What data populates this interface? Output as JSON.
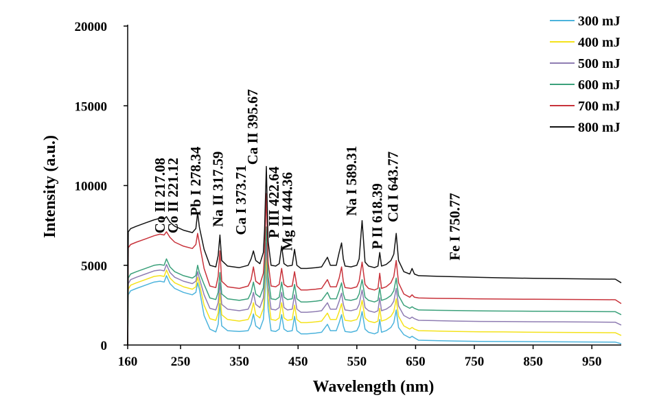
{
  "chart_data": {
    "type": "line",
    "title": "",
    "xlabel": "Wavelength (nm)",
    "ylabel": "Intensity (a.u.)",
    "xlim": [
      160,
      1000
    ],
    "ylim": [
      0,
      20000
    ],
    "x_ticks": [
      160,
      250,
      350,
      450,
      550,
      650,
      750,
      850,
      950
    ],
    "y_ticks": [
      0,
      5000,
      10000,
      15000,
      20000
    ],
    "x_tick_labels": [
      "160",
      "250",
      "350",
      "450",
      "550",
      "650",
      "750",
      "850",
      "950"
    ],
    "y_tick_labels": [
      "0",
      "5000",
      "10000",
      "15000",
      "20000"
    ],
    "grid": false,
    "legend_position": "top-right",
    "x": [
      160,
      161,
      165,
      175,
      190,
      205,
      215,
      222,
      226,
      232,
      240,
      255,
      270,
      276,
      279,
      282,
      290,
      300,
      310,
      314,
      317,
      320,
      330,
      350,
      365,
      370,
      374,
      378,
      385,
      391,
      393,
      396,
      399,
      404,
      412,
      418,
      422,
      426,
      432,
      440,
      444,
      448,
      455,
      465,
      480,
      490,
      500,
      505,
      515,
      520,
      524,
      527,
      530,
      540,
      550,
      554,
      559,
      564,
      570,
      580,
      586,
      589,
      592,
      600,
      608,
      613,
      617,
      621,
      630,
      640,
      644,
      648,
      655,
      680,
      720,
      760,
      800,
      850,
      900,
      950,
      990,
      1000
    ],
    "series": [
      {
        "name": "300 mJ",
        "color": "#4bb3dc",
        "values": [
          0,
          3150,
          3400,
          3550,
          3750,
          3950,
          4000,
          3950,
          4350,
          3850,
          3550,
          3300,
          3150,
          3300,
          3900,
          3500,
          1850,
          1000,
          820,
          1300,
          2600,
          1200,
          900,
          850,
          900,
          1300,
          1950,
          1200,
          1000,
          1600,
          2700,
          4900,
          2300,
          900,
          850,
          1000,
          1900,
          1000,
          850,
          900,
          1800,
          900,
          700,
          700,
          750,
          800,
          1300,
          900,
          900,
          1400,
          1900,
          1200,
          850,
          800,
          900,
          1200,
          2100,
          1000,
          800,
          700,
          800,
          1600,
          800,
          900,
          1100,
          1400,
          2200,
          1100,
          650,
          450,
          550,
          450,
          300,
          280,
          250,
          230,
          220,
          210,
          200,
          190,
          180,
          80
        ]
      },
      {
        "name": "400 mJ",
        "color": "#f4e21a",
        "values": [
          0,
          3500,
          3750,
          3900,
          4100,
          4300,
          4350,
          4300,
          4700,
          4200,
          3900,
          3650,
          3500,
          3650,
          4250,
          3850,
          2500,
          1650,
          1550,
          2000,
          3250,
          1900,
          1600,
          1500,
          1600,
          2000,
          2650,
          1900,
          1700,
          2300,
          3400,
          5700,
          3000,
          1600,
          1550,
          1700,
          2650,
          1700,
          1550,
          1600,
          2500,
          1600,
          1400,
          1400,
          1450,
          1500,
          2000,
          1600,
          1600,
          2100,
          2600,
          1900,
          1550,
          1500,
          1600,
          1900,
          2800,
          1700,
          1500,
          1400,
          1500,
          2300,
          1500,
          1600,
          1800,
          2100,
          2900,
          1800,
          1200,
          1000,
          1100,
          1000,
          900,
          880,
          850,
          830,
          820,
          800,
          790,
          780,
          770,
          600
        ]
      },
      {
        "name": "500 mJ",
        "color": "#8e7cb2",
        "values": [
          0,
          3850,
          4100,
          4250,
          4450,
          4650,
          4700,
          4650,
          5050,
          4550,
          4250,
          4000,
          3850,
          4000,
          4600,
          4200,
          3150,
          2300,
          2200,
          2650,
          3900,
          2550,
          2250,
          2150,
          2250,
          2650,
          3300,
          2550,
          2350,
          2950,
          4050,
          6400,
          3650,
          2250,
          2200,
          2350,
          3300,
          2350,
          2200,
          2250,
          3150,
          2250,
          2050,
          2050,
          2100,
          2150,
          2650,
          2250,
          2250,
          2750,
          3250,
          2550,
          2200,
          2150,
          2250,
          2550,
          3450,
          2350,
          2150,
          2050,
          2150,
          2950,
          2150,
          2250,
          2450,
          2750,
          3550,
          2450,
          1850,
          1650,
          1750,
          1650,
          1550,
          1530,
          1500,
          1480,
          1470,
          1460,
          1450,
          1440,
          1430,
          1250
        ]
      },
      {
        "name": "600 mJ",
        "color": "#3aa07a",
        "values": [
          0,
          4200,
          4450,
          4600,
          4800,
          5000,
          5050,
          5000,
          5400,
          4900,
          4600,
          4350,
          4200,
          4350,
          5000,
          4550,
          3800,
          2950,
          2850,
          3300,
          4550,
          3200,
          2900,
          2800,
          2900,
          3300,
          3950,
          3200,
          3000,
          3600,
          4700,
          7400,
          4300,
          2900,
          2850,
          3000,
          3950,
          3000,
          2850,
          2900,
          3800,
          2900,
          2700,
          2700,
          2750,
          2800,
          3300,
          2900,
          2900,
          3400,
          3900,
          3200,
          2850,
          2800,
          2900,
          3200,
          4100,
          3000,
          2800,
          2700,
          2800,
          3600,
          2800,
          2900,
          3100,
          3400,
          4200,
          3100,
          2500,
          2300,
          2400,
          2300,
          2200,
          2180,
          2160,
          2140,
          2130,
          2120,
          2110,
          2100,
          2090,
          1900
        ]
      },
      {
        "name": "700 mJ",
        "color": "#c8323a",
        "values": [
          0,
          6100,
          6300,
          6450,
          6650,
          6850,
          6950,
          6900,
          7100,
          6750,
          6450,
          6200,
          6050,
          6300,
          7000,
          6400,
          4800,
          3700,
          3600,
          4300,
          5900,
          4000,
          3650,
          3550,
          3700,
          4100,
          4900,
          4000,
          3800,
          4500,
          5700,
          9500,
          5200,
          3700,
          3650,
          3800,
          4800,
          3800,
          3650,
          3700,
          4600,
          3700,
          3450,
          3450,
          3500,
          3550,
          4100,
          3650,
          3650,
          4200,
          4900,
          4000,
          3600,
          3550,
          3650,
          4000,
          5200,
          3800,
          3550,
          3450,
          3550,
          4500,
          3550,
          3650,
          3900,
          4300,
          5300,
          3900,
          3200,
          3000,
          3150,
          3000,
          2950,
          2930,
          2910,
          2890,
          2880,
          2870,
          2860,
          2850,
          2840,
          2600
        ]
      },
      {
        "name": "800 mJ",
        "color": "#111111",
        "values": [
          0,
          7100,
          7300,
          7450,
          7650,
          7850,
          7950,
          7900,
          8050,
          7700,
          7450,
          7200,
          7050,
          7300,
          8300,
          7400,
          6000,
          5000,
          4900,
          5600,
          6900,
          5300,
          4950,
          4850,
          5000,
          5400,
          5900,
          5300,
          5100,
          5800,
          7200,
          11200,
          6500,
          5000,
          4950,
          5100,
          6200,
          5100,
          4950,
          5000,
          6000,
          5000,
          4800,
          4800,
          4850,
          4900,
          5500,
          5000,
          5000,
          5800,
          6400,
          5400,
          4950,
          4900,
          5000,
          5400,
          7800,
          5200,
          4950,
          4850,
          4950,
          5800,
          4950,
          5050,
          5300,
          5700,
          7000,
          5300,
          4600,
          4450,
          4800,
          4450,
          4350,
          4320,
          4280,
          4240,
          4210,
          4180,
          4160,
          4140,
          4130,
          3900
        ]
      }
    ],
    "annotations": [
      {
        "text": "Co II 217.08",
        "x": 223,
        "y": 7000
      },
      {
        "text": "Co II 221.12",
        "x": 245,
        "y": 7000
      },
      {
        "text": "Pb I 278.34",
        "x": 284,
        "y": 8100
      },
      {
        "text": "Na II 317.59",
        "x": 322,
        "y": 7400
      },
      {
        "text": "Ca I 373.71",
        "x": 361,
        "y": 6900
      },
      {
        "text": "Ca II 395.67",
        "x": 381,
        "y": 11300
      },
      {
        "text": "P III 422.64",
        "x": 417,
        "y": 6700
      },
      {
        "text": "Mg II 444.36",
        "x": 440,
        "y": 5900
      },
      {
        "text": "Na I 589.31",
        "x": 549,
        "y": 8100
      },
      {
        "text": "P II 618.39",
        "x": 593,
        "y": 6000
      },
      {
        "text": "Cd I 643.77",
        "x": 620,
        "y": 7700
      },
      {
        "text": "Fe I 750.77",
        "x": 725,
        "y": 5300
      }
    ]
  }
}
